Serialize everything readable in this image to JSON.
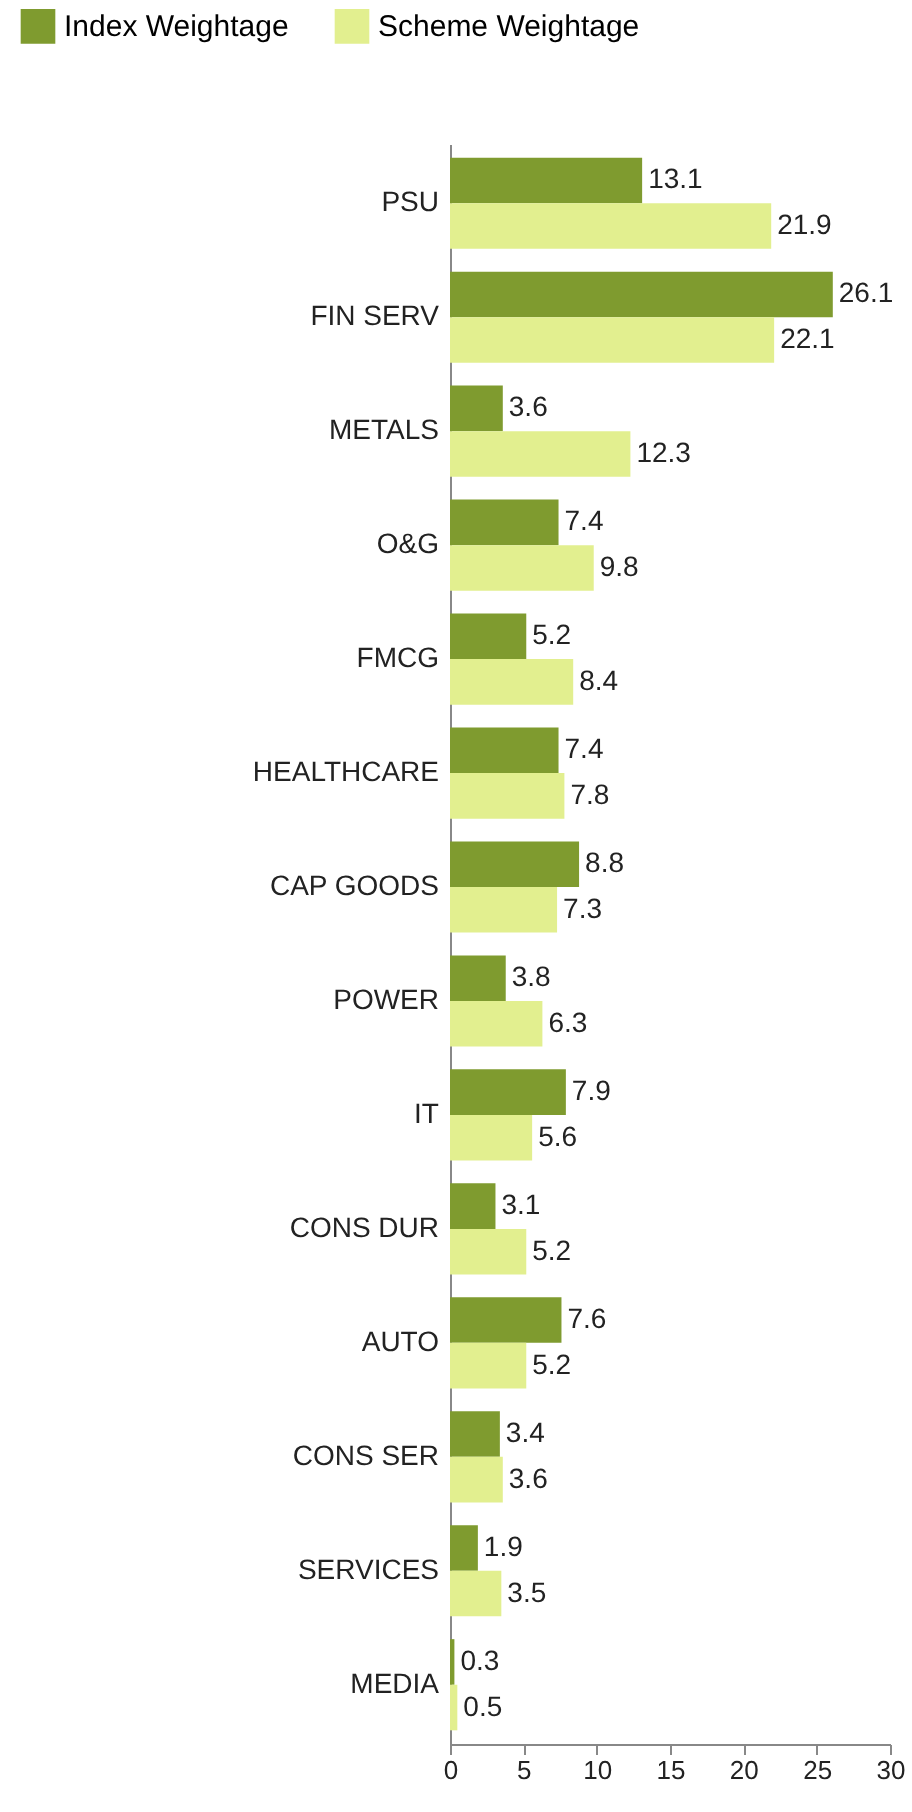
{
  "chart_data": {
    "type": "bar",
    "orientation": "horizontal",
    "categories": [
      "PSU",
      "FIN SERV",
      "METALS",
      "O&G",
      "FMCG",
      "HEALTHCARE",
      "CAP GOODS",
      "POWER",
      "IT",
      "CONS DUR",
      "AUTO",
      "CONS SER",
      "SERVICES",
      "MEDIA"
    ],
    "series": [
      {
        "name": "Index Weightage",
        "color": "#7f9b2f",
        "values": [
          13.1,
          26.1,
          3.6,
          7.4,
          5.2,
          7.4,
          8.8,
          3.8,
          7.9,
          3.1,
          7.6,
          3.4,
          1.9,
          0.3
        ]
      },
      {
        "name": "Scheme Weightage",
        "color": "#e2ef8f",
        "values": [
          21.9,
          22.1,
          12.3,
          9.8,
          8.4,
          7.8,
          7.3,
          6.3,
          5.6,
          5.2,
          5.2,
          3.6,
          3.5,
          0.5
        ]
      }
    ],
    "xlim": [
      0,
      30
    ],
    "xticks": [
      0,
      5,
      10,
      15,
      20,
      25,
      30
    ],
    "data_labels": true,
    "legend": "top",
    "grid": false
  }
}
